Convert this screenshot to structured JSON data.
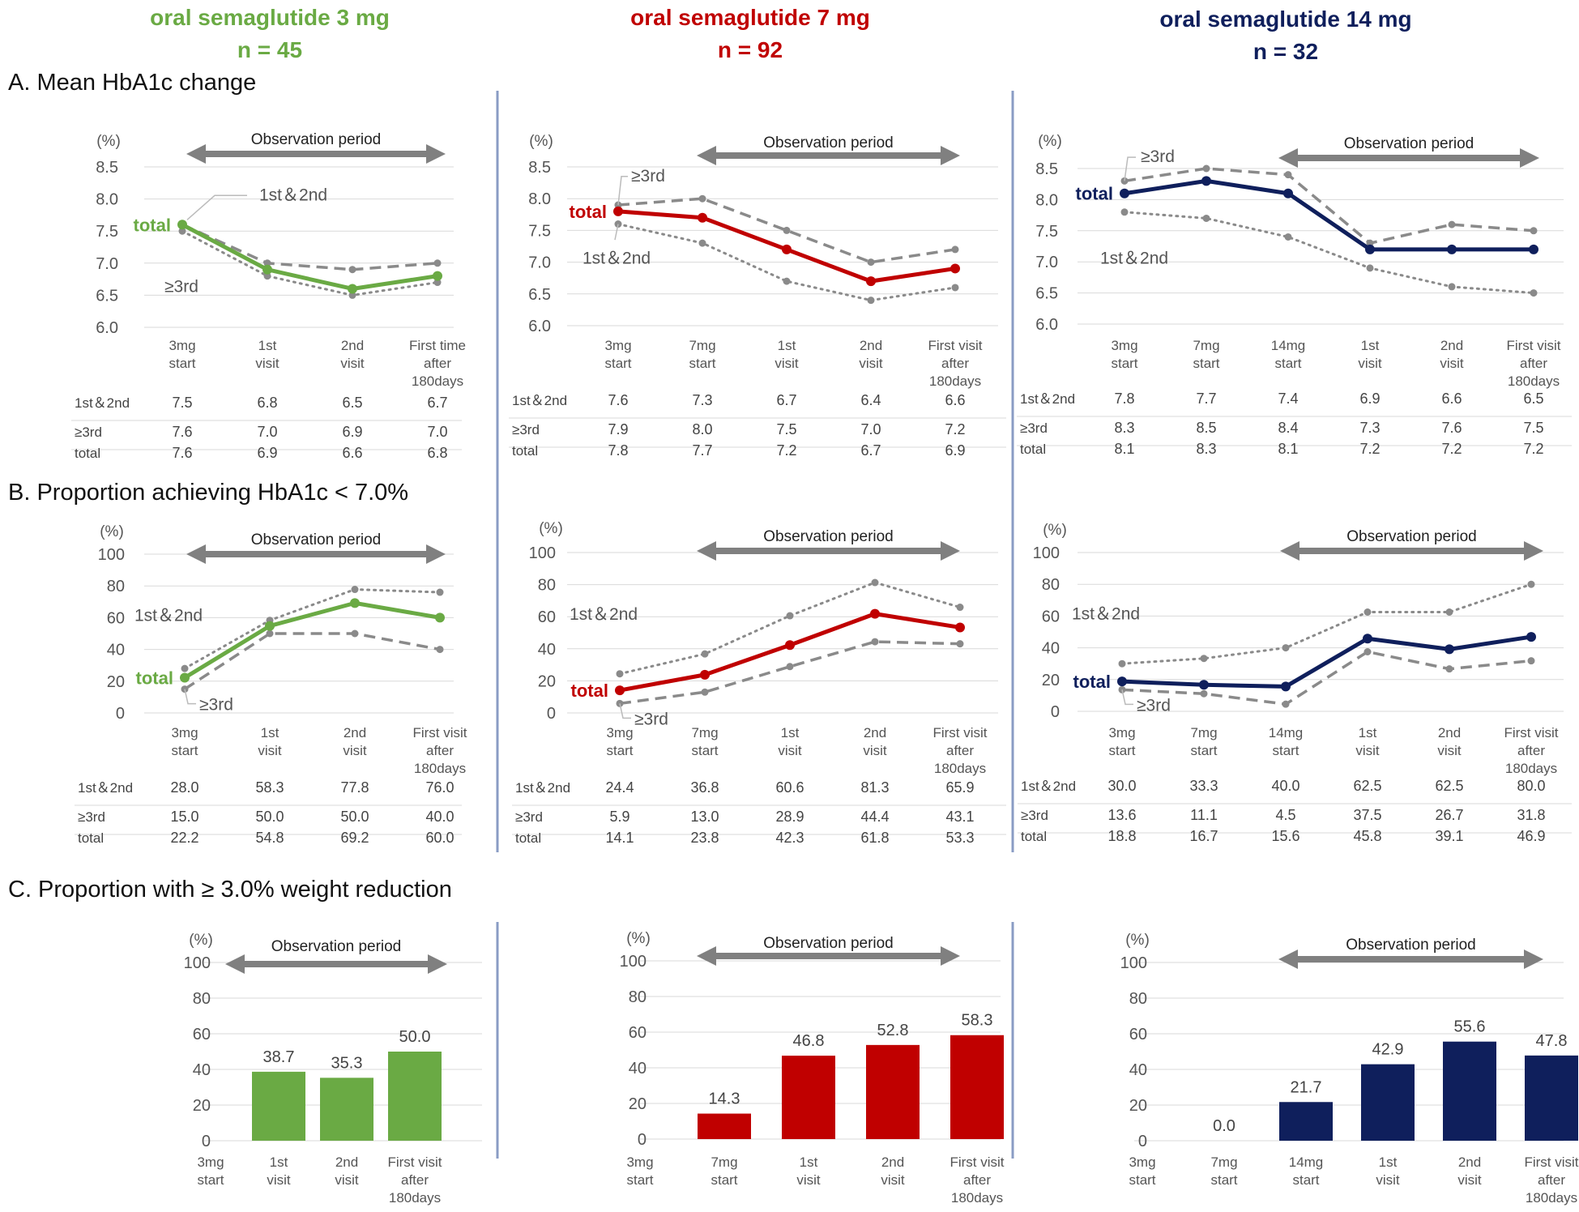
{
  "colors": {
    "green": "#6aaa44",
    "red": "#c00000",
    "navy": "#0f1f5c",
    "gray": "#808080",
    "divider": "#8a9cc4"
  },
  "headers": [
    {
      "title": "oral semaglutide 3 mg",
      "n": "n = 45",
      "color": "#6aaa44"
    },
    {
      "title": "oral semaglutide 7 mg",
      "n": "n = 92",
      "color": "#c00000"
    },
    {
      "title": "oral semaglutide 14 mg",
      "n": "n = 32",
      "color": "#0f1f5c"
    }
  ],
  "sections": {
    "A": "A. Mean HbA1c change",
    "B": "B. Proportion achieving HbA1c < 7.0%",
    "C": "C. Proportion with ≥ 3.0% weight reduction"
  },
  "observation_label": "Observation period",
  "unit_label": "(%)",
  "row_labels": [
    "1st＆2nd",
    "≥3rd",
    "total"
  ],
  "chart_data": [
    {
      "id": "A1",
      "type": "line",
      "section": "A",
      "ylim": [
        6.0,
        8.5
      ],
      "yticks": [
        "6.0",
        "6.5",
        "7.0",
        "7.5",
        "8.0",
        "8.5"
      ],
      "categories": [
        "3mg\nstart",
        "1st\nvisit",
        "2nd\nvisit",
        "First time\nafter\n180days"
      ],
      "series": [
        {
          "name": "1st＆2nd",
          "style": "dotted",
          "values": [
            7.5,
            6.8,
            6.5,
            6.7
          ]
        },
        {
          "name": "≥3rd",
          "style": "dashed",
          "values": [
            7.6,
            7.0,
            6.9,
            7.0
          ]
        },
        {
          "name": "total",
          "style": "solid",
          "values": [
            7.6,
            6.9,
            6.6,
            6.8
          ]
        }
      ],
      "table": [
        [
          "7.5",
          "6.8",
          "6.5",
          "6.7"
        ],
        [
          "7.6",
          "7.0",
          "6.9",
          "7.0"
        ],
        [
          "7.6",
          "6.9",
          "6.6",
          "6.8"
        ]
      ],
      "annotations": [
        "total",
        "1st＆2nd",
        "≥3rd"
      ]
    },
    {
      "id": "A2",
      "type": "line",
      "section": "A",
      "ylim": [
        6.0,
        8.5
      ],
      "yticks": [
        "6.0",
        "6.5",
        "7.0",
        "7.5",
        "8.0",
        "8.5"
      ],
      "categories": [
        "3mg\nstart",
        "7mg\nstart",
        "1st\nvisit",
        "2nd\nvisit",
        "First visit\nafter\n180days"
      ],
      "series": [
        {
          "name": "1st＆2nd",
          "style": "dotted",
          "values": [
            7.6,
            7.3,
            6.7,
            6.4,
            6.6
          ]
        },
        {
          "name": "≥3rd",
          "style": "dashed",
          "values": [
            7.9,
            8.0,
            7.5,
            7.0,
            7.2
          ]
        },
        {
          "name": "total",
          "style": "solid",
          "values": [
            7.8,
            7.7,
            7.2,
            6.7,
            6.9
          ]
        }
      ],
      "table": [
        [
          "7.6",
          "7.3",
          "6.7",
          "6.4",
          "6.6"
        ],
        [
          "7.9",
          "8.0",
          "7.5",
          "7.0",
          "7.2"
        ],
        [
          "7.8",
          "7.7",
          "7.2",
          "6.7",
          "6.9"
        ]
      ],
      "annotations": [
        "total",
        "≥3rd",
        "1st＆2nd"
      ]
    },
    {
      "id": "A3",
      "type": "line",
      "section": "A",
      "ylim": [
        6.0,
        8.5
      ],
      "yticks": [
        "6.0",
        "6.5",
        "7.0",
        "7.5",
        "8.0",
        "8.5"
      ],
      "categories": [
        "3mg\nstart",
        "7mg\nstart",
        "14mg\nstart",
        "1st\nvisit",
        "2nd\nvisit",
        "First visit\nafter\n180days"
      ],
      "series": [
        {
          "name": "1st＆2nd",
          "style": "dotted",
          "values": [
            7.8,
            7.7,
            7.4,
            6.9,
            6.6,
            6.5
          ]
        },
        {
          "name": "≥3rd",
          "style": "dashed",
          "values": [
            8.3,
            8.5,
            8.4,
            7.3,
            7.6,
            7.5
          ]
        },
        {
          "name": "total",
          "style": "solid",
          "values": [
            8.1,
            8.3,
            8.1,
            7.2,
            7.2,
            7.2
          ]
        }
      ],
      "table": [
        [
          "7.8",
          "7.7",
          "7.4",
          "6.9",
          "6.6",
          "6.5"
        ],
        [
          "8.3",
          "8.5",
          "8.4",
          "7.3",
          "7.6",
          "7.5"
        ],
        [
          "8.1",
          "8.3",
          "8.1",
          "7.2",
          "7.2",
          "7.2"
        ]
      ],
      "annotations": [
        "total",
        "≥3rd",
        "1st＆2nd"
      ]
    },
    {
      "id": "B1",
      "type": "line",
      "section": "B",
      "ylim": [
        0,
        100
      ],
      "yticks": [
        "0",
        "20",
        "40",
        "60",
        "80",
        "100"
      ],
      "categories": [
        "3mg\nstart",
        "1st\nvisit",
        "2nd\nvisit",
        "First visit\nafter\n180days"
      ],
      "series": [
        {
          "name": "1st＆2nd",
          "style": "dotted",
          "values": [
            28.0,
            58.3,
            77.8,
            76.0
          ]
        },
        {
          "name": "≥3rd",
          "style": "dashed",
          "values": [
            15.0,
            50.0,
            50.0,
            40.0
          ]
        },
        {
          "name": "total",
          "style": "solid",
          "values": [
            22.2,
            54.8,
            69.2,
            60.0
          ]
        }
      ],
      "table": [
        [
          "28.0",
          "58.3",
          "77.8",
          "76.0"
        ],
        [
          "15.0",
          "50.0",
          "50.0",
          "40.0"
        ],
        [
          "22.2",
          "54.8",
          "69.2",
          "60.0"
        ]
      ],
      "annotations": [
        "total",
        "1st＆2nd",
        "≥3rd"
      ]
    },
    {
      "id": "B2",
      "type": "line",
      "section": "B",
      "ylim": [
        0,
        100
      ],
      "yticks": [
        "0",
        "20",
        "40",
        "60",
        "80",
        "100"
      ],
      "categories": [
        "3mg\nstart",
        "7mg\nstart",
        "1st\nvisit",
        "2nd\nvisit",
        "First visit\nafter\n180days"
      ],
      "series": [
        {
          "name": "1st＆2nd",
          "style": "dotted",
          "values": [
            24.4,
            36.8,
            60.6,
            81.3,
            65.9
          ]
        },
        {
          "name": "≥3rd",
          "style": "dashed",
          "values": [
            5.9,
            13.0,
            28.9,
            44.4,
            43.1
          ]
        },
        {
          "name": "total",
          "style": "solid",
          "values": [
            14.1,
            23.8,
            42.3,
            61.8,
            53.3
          ]
        }
      ],
      "table": [
        [
          "24.4",
          "36.8",
          "60.6",
          "81.3",
          "65.9"
        ],
        [
          "5.9",
          "13.0",
          "28.9",
          "44.4",
          "43.1"
        ],
        [
          "14.1",
          "23.8",
          "42.3",
          "61.8",
          "53.3"
        ]
      ],
      "annotations": [
        "total",
        "1st＆2nd",
        "≥3rd"
      ]
    },
    {
      "id": "B3",
      "type": "line",
      "section": "B",
      "ylim": [
        0,
        100
      ],
      "yticks": [
        "0",
        "20",
        "40",
        "60",
        "80",
        "100"
      ],
      "categories": [
        "3mg\nstart",
        "7mg\nstart",
        "14mg\nstart",
        "1st\nvisit",
        "2nd\nvisit",
        "First visit\nafter\n180days"
      ],
      "series": [
        {
          "name": "1st＆2nd",
          "style": "dotted",
          "values": [
            30.0,
            33.3,
            40.0,
            62.5,
            62.5,
            80.0
          ]
        },
        {
          "name": "≥3rd",
          "style": "dashed",
          "values": [
            13.6,
            11.1,
            4.5,
            37.5,
            26.7,
            31.8
          ]
        },
        {
          "name": "total",
          "style": "solid",
          "values": [
            18.8,
            16.7,
            15.6,
            45.8,
            39.1,
            46.9
          ]
        }
      ],
      "table": [
        [
          "30.0",
          "33.3",
          "40.0",
          "62.5",
          "62.5",
          "80.0"
        ],
        [
          "13.6",
          "11.1",
          "4.5",
          "37.5",
          "26.7",
          "31.8"
        ],
        [
          "18.8",
          "16.7",
          "15.6",
          "45.8",
          "39.1",
          "46.9"
        ]
      ],
      "annotations": [
        "total",
        "1st＆2nd",
        "≥3rd"
      ]
    },
    {
      "id": "C1",
      "type": "bar",
      "section": "C",
      "ylim": [
        0,
        100
      ],
      "yticks": [
        "0",
        "20",
        "40",
        "60",
        "80",
        "100"
      ],
      "categories": [
        "3mg\nstart",
        "1st\nvisit",
        "2nd\nvisit",
        "First visit\nafter\n180days"
      ],
      "values": [
        null,
        38.7,
        35.3,
        50.0
      ],
      "labels": [
        "",
        "38.7",
        "35.3",
        "50.0"
      ]
    },
    {
      "id": "C2",
      "type": "bar",
      "section": "C",
      "ylim": [
        0,
        100
      ],
      "yticks": [
        "0",
        "20",
        "40",
        "60",
        "80",
        "100"
      ],
      "categories": [
        "3mg\nstart",
        "7mg\nstart",
        "1st\nvisit",
        "2nd\nvisit",
        "First visit\nafter\n180days"
      ],
      "values": [
        null,
        14.3,
        46.8,
        52.8,
        58.3
      ],
      "labels": [
        "",
        "14.3",
        "46.8",
        "52.8",
        "58.3"
      ]
    },
    {
      "id": "C3",
      "type": "bar",
      "section": "C",
      "ylim": [
        0,
        100
      ],
      "yticks": [
        "0",
        "20",
        "40",
        "60",
        "80",
        "100"
      ],
      "categories": [
        "3mg\nstart",
        "7mg\nstart",
        "14mg\nstart",
        "1st\nvisit",
        "2nd\nvisit",
        "First visit\nafter\n180days"
      ],
      "values": [
        null,
        0.0,
        21.7,
        42.9,
        55.6,
        47.8
      ],
      "labels": [
        "",
        "0.0",
        "21.7",
        "42.9",
        "55.6",
        "47.8"
      ]
    }
  ]
}
